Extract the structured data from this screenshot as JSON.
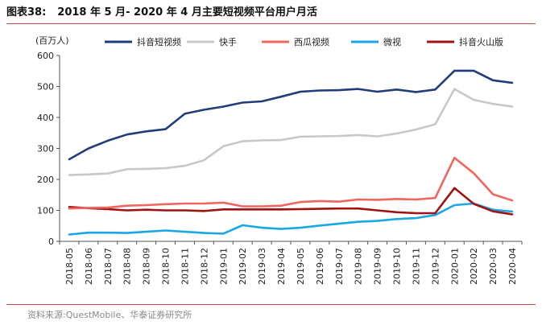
{
  "header": {
    "figure_label": "图表38:",
    "figure_title": "2018 年 5 月- 2020 年 4 月主要短视频平台用户月活"
  },
  "footer": {
    "source": "资料来源:QuestMobile、华泰证券研究所"
  },
  "chart_data": {
    "type": "line",
    "title": "2018 年 5 月- 2020 年 4 月主要短视频平台用户月活",
    "ylabel": "(百万人)",
    "xlabel": "",
    "ylim": [
      0,
      600
    ],
    "yticks": [
      0,
      100,
      200,
      300,
      400,
      500,
      600
    ],
    "grid": false,
    "legend_position": "top",
    "categories": [
      "2018-05",
      "2018-06",
      "2018-07",
      "2018-08",
      "2018-09",
      "2018-10",
      "2018-11",
      "2018-12",
      "2019-01",
      "2019-02",
      "2019-03",
      "2019-04",
      "2019-05",
      "2019-06",
      "2019-07",
      "2019-08",
      "2019-09",
      "2019-10",
      "2019-11",
      "2019-12",
      "2020-01",
      "2020-02",
      "2020-03",
      "2020-04"
    ],
    "series": [
      {
        "name": "抖音短视频",
        "color": "#1f3d7a",
        "values": [
          265,
          300,
          325,
          345,
          355,
          362,
          412,
          425,
          435,
          448,
          452,
          467,
          483,
          487,
          488,
          492,
          483,
          490,
          482,
          490,
          551,
          551,
          520,
          512
        ]
      },
      {
        "name": "快手",
        "color": "#c8c8c8",
        "values": [
          214,
          216,
          219,
          233,
          234,
          236,
          244,
          262,
          307,
          323,
          326,
          327,
          338,
          339,
          340,
          343,
          339,
          348,
          361,
          378,
          492,
          457,
          444,
          435
        ]
      },
      {
        "name": "西瓜视频",
        "color": "#f0665f",
        "values": [
          106,
          108,
          109,
          115,
          117,
          120,
          122,
          122,
          125,
          113,
          113,
          115,
          127,
          130,
          128,
          135,
          134,
          137,
          135,
          140,
          270,
          220,
          152,
          132
        ]
      },
      {
        "name": "微视",
        "color": "#1aa7e6",
        "values": [
          22,
          28,
          28,
          27,
          31,
          35,
          31,
          27,
          25,
          52,
          44,
          40,
          44,
          51,
          57,
          63,
          66,
          72,
          75,
          85,
          117,
          122,
          102,
          96
        ]
      },
      {
        "name": "抖音火山版",
        "color": "#a01212",
        "values": [
          111,
          107,
          104,
          100,
          102,
          100,
          100,
          98,
          103,
          103,
          103,
          103,
          104,
          105,
          106,
          106,
          100,
          94,
          91,
          91,
          172,
          121,
          97,
          87
        ]
      }
    ]
  }
}
